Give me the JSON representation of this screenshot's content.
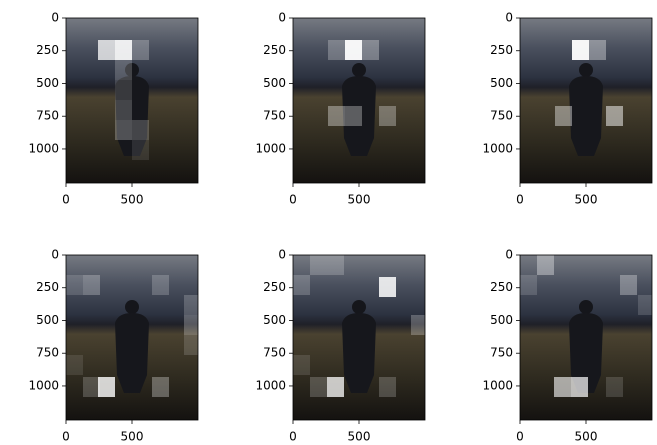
{
  "chart_data": [
    {
      "type": "image",
      "xlim": [
        0,
        1000
      ],
      "ylim": [
        1260,
        0
      ],
      "xticks": [
        0,
        500
      ],
      "yticks": [
        0,
        250,
        500,
        750,
        1000
      ]
    },
    {
      "type": "image",
      "xlim": [
        0,
        1000
      ],
      "ylim": [
        1260,
        0
      ],
      "xticks": [
        0,
        500
      ],
      "yticks": [
        0,
        250,
        500,
        750,
        1000
      ]
    },
    {
      "type": "image",
      "xlim": [
        0,
        1000
      ],
      "ylim": [
        1260,
        0
      ],
      "xticks": [
        0,
        500
      ],
      "yticks": [
        0,
        250,
        500,
        750,
        1000
      ]
    },
    {
      "type": "image",
      "xlim": [
        0,
        1000
      ],
      "ylim": [
        1260,
        0
      ],
      "xticks": [
        0,
        500
      ],
      "yticks": [
        0,
        250,
        500,
        750,
        1000
      ]
    },
    {
      "type": "image",
      "xlim": [
        0,
        1000
      ],
      "ylim": [
        1260,
        0
      ],
      "xticks": [
        0,
        500
      ],
      "yticks": [
        0,
        250,
        500,
        750,
        1000
      ]
    },
    {
      "type": "image",
      "xlim": [
        0,
        1000
      ],
      "ylim": [
        1260,
        0
      ],
      "xticks": [
        0,
        500
      ],
      "yticks": [
        0,
        250,
        500,
        750,
        1000
      ]
    }
  ]
}
